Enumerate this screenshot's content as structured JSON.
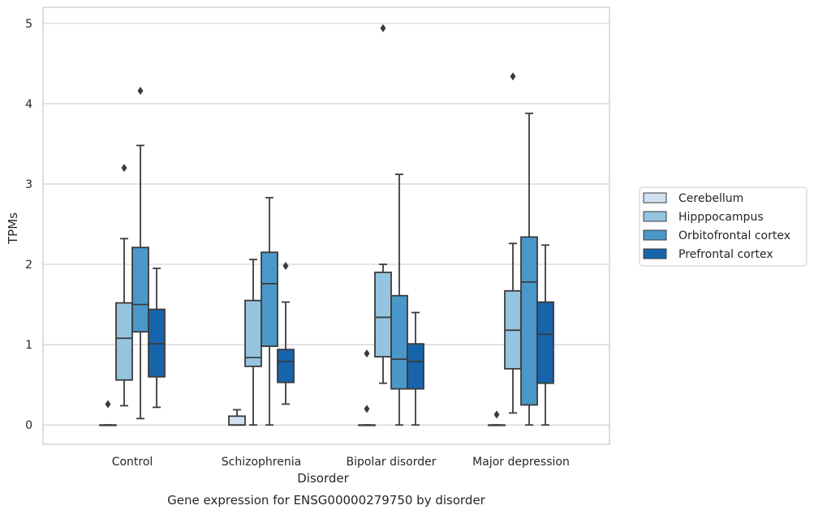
{
  "chart_data": {
    "type": "box",
    "caption": "Gene expression for ENSG00000279750 by disorder",
    "xlabel": "Disorder",
    "ylabel": "TPMs",
    "ylim": [
      -0.24,
      5.2
    ],
    "yticks": [
      0,
      1,
      2,
      3,
      4,
      5
    ],
    "grid": "horizontal",
    "legend_position": "right",
    "categories": [
      "Control",
      "Schizophrenia",
      "Bipolar disorder",
      "Major depression"
    ],
    "series": [
      {
        "name": "Cerebellum",
        "color": "#d0e1f2",
        "boxes": [
          {
            "q1": 0.0,
            "median": 0.0,
            "q3": 0.0,
            "whislo": 0.0,
            "whishi": 0.0,
            "fliers": [
              0.26
            ]
          },
          {
            "q1": 0.0,
            "median": 0.0,
            "q3": 0.11,
            "whislo": 0.0,
            "whishi": 0.19,
            "fliers": []
          },
          {
            "q1": 0.0,
            "median": 0.0,
            "q3": 0.0,
            "whislo": 0.0,
            "whishi": 0.0,
            "fliers": [
              0.89,
              0.2
            ]
          },
          {
            "q1": 0.0,
            "median": 0.0,
            "q3": 0.0,
            "whislo": 0.0,
            "whishi": 0.0,
            "fliers": [
              0.13
            ]
          }
        ]
      },
      {
        "name": "Hipppocampus",
        "color": "#94c4df",
        "boxes": [
          {
            "q1": 0.56,
            "median": 1.08,
            "q3": 1.52,
            "whislo": 0.24,
            "whishi": 2.32,
            "fliers": [
              3.2
            ]
          },
          {
            "q1": 0.73,
            "median": 0.84,
            "q3": 1.55,
            "whislo": 0.0,
            "whishi": 2.06,
            "fliers": []
          },
          {
            "q1": 0.85,
            "median": 1.34,
            "q3": 1.9,
            "whislo": 0.52,
            "whishi": 2.0,
            "fliers": [
              4.94
            ]
          },
          {
            "q1": 0.7,
            "median": 1.18,
            "q3": 1.67,
            "whislo": 0.15,
            "whishi": 2.26,
            "fliers": [
              4.34
            ]
          }
        ]
      },
      {
        "name": "Orbitofrontal cortex",
        "color": "#4a98c9",
        "boxes": [
          {
            "q1": 1.16,
            "median": 1.5,
            "q3": 2.21,
            "whislo": 0.08,
            "whishi": 3.48,
            "fliers": [
              4.16
            ]
          },
          {
            "q1": 0.98,
            "median": 1.76,
            "q3": 2.15,
            "whislo": 0.0,
            "whishi": 2.83,
            "fliers": []
          },
          {
            "q1": 0.45,
            "median": 0.82,
            "q3": 1.61,
            "whislo": 0.0,
            "whishi": 3.12,
            "fliers": []
          },
          {
            "q1": 0.25,
            "median": 1.78,
            "q3": 2.34,
            "whislo": 0.0,
            "whishi": 3.88,
            "fliers": []
          }
        ]
      },
      {
        "name": "Prefrontal cortex",
        "color": "#1764ab",
        "boxes": [
          {
            "q1": 0.6,
            "median": 1.01,
            "q3": 1.44,
            "whislo": 0.22,
            "whishi": 1.95,
            "fliers": []
          },
          {
            "q1": 0.53,
            "median": 0.79,
            "q3": 0.94,
            "whislo": 0.26,
            "whishi": 1.53,
            "fliers": [
              1.98
            ]
          },
          {
            "q1": 0.45,
            "median": 0.79,
            "q3": 1.01,
            "whislo": 0.0,
            "whishi": 1.4,
            "fliers": []
          },
          {
            "q1": 0.52,
            "median": 1.13,
            "q3": 1.53,
            "whislo": 0.0,
            "whishi": 2.24,
            "fliers": []
          }
        ]
      }
    ]
  }
}
